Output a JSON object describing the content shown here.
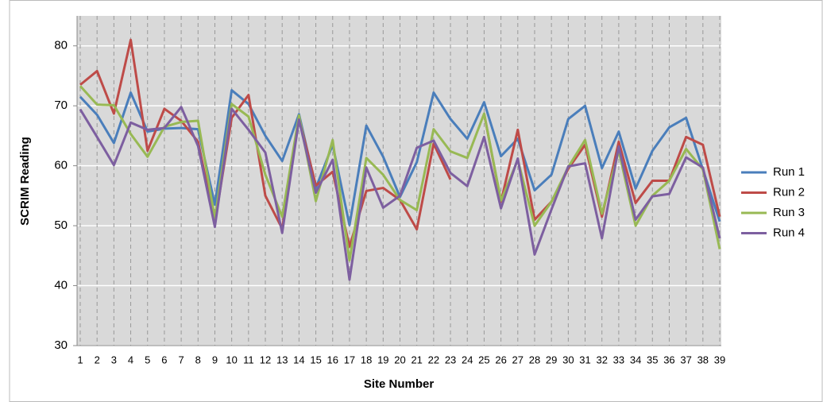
{
  "chart_data": {
    "type": "line",
    "x_label": "Site Number",
    "y_label": "SCRIM Reading",
    "categories": [
      "1",
      "2",
      "3",
      "4",
      "5",
      "6",
      "7",
      "8",
      "9",
      "10",
      "11",
      "12",
      "13",
      "14",
      "15",
      "16",
      "17",
      "18",
      "19",
      "20",
      "21",
      "22",
      "23",
      "24",
      "25",
      "26",
      "27",
      "28",
      "29",
      "30",
      "31",
      "32",
      "33",
      "34",
      "35",
      "36",
      "37",
      "38",
      "39"
    ],
    "ylim": [
      30,
      85
    ],
    "yticks": [
      30,
      40,
      50,
      60,
      70,
      80
    ],
    "grid": true,
    "legend": "right",
    "series": [
      {
        "name": "Run 1",
        "color": "#4a7ebb",
        "values": [
          71.5,
          68.5,
          63.8,
          72.2,
          65.7,
          66.2,
          66.3,
          66.1,
          53.5,
          72.6,
          70.3,
          65,
          60.8,
          68.6,
          56.3,
          63.5,
          50.1,
          66.7,
          61.5,
          54.8,
          60.6,
          72.2,
          67.8,
          64.5,
          70.6,
          61.6,
          64.5,
          55.9,
          58.5,
          67.8,
          70,
          59.6,
          65.7,
          56.2,
          62.5,
          66.4,
          68,
          59.4,
          50.7
        ]
      },
      {
        "name": "Run 2",
        "color": "#be4b48",
        "values": [
          73.5,
          75.8,
          68.7,
          81,
          62.5,
          69.5,
          67.5,
          64,
          50.5,
          68,
          71.8,
          55,
          49.5,
          68,
          56.7,
          59,
          46.5,
          55.8,
          56.3,
          54.3,
          49.4,
          63.7,
          57.7,
          null,
          68.7,
          54,
          66,
          51,
          54,
          59.5,
          63.5,
          51.5,
          64,
          53.8,
          57.5,
          57.5,
          64.8,
          63.5,
          51.5
        ]
      },
      {
        "name": "Run 3",
        "color": "#98b954",
        "values": [
          73.3,
          70.2,
          70.1,
          65.3,
          61.5,
          66.5,
          67.3,
          67.5,
          51.2,
          70.3,
          68.2,
          58.5,
          51.5,
          68.4,
          54.1,
          64.3,
          44.2,
          61.3,
          58.5,
          54.3,
          52.6,
          66.1,
          62.4,
          61.3,
          68.7,
          54.2,
          61,
          50,
          54,
          59.8,
          64.3,
          52,
          62.5,
          50,
          55,
          57.5,
          62.8,
          59.4,
          46.1
        ]
      },
      {
        "name": "Run 4",
        "color": "#7d5fa0",
        "values": [
          69.4,
          64.8,
          60.1,
          67.2,
          66,
          66.3,
          69.8,
          63.3,
          49.8,
          69.5,
          66,
          62.2,
          48.8,
          67.7,
          55.5,
          61,
          41,
          59.7,
          53,
          55,
          63,
          64.2,
          58.8,
          56.6,
          64.8,
          52.9,
          61.2,
          45.2,
          52.7,
          59.9,
          60.4,
          47.9,
          63.2,
          51,
          54.9,
          55.3,
          61.4,
          59.7,
          47.9
        ]
      }
    ]
  }
}
